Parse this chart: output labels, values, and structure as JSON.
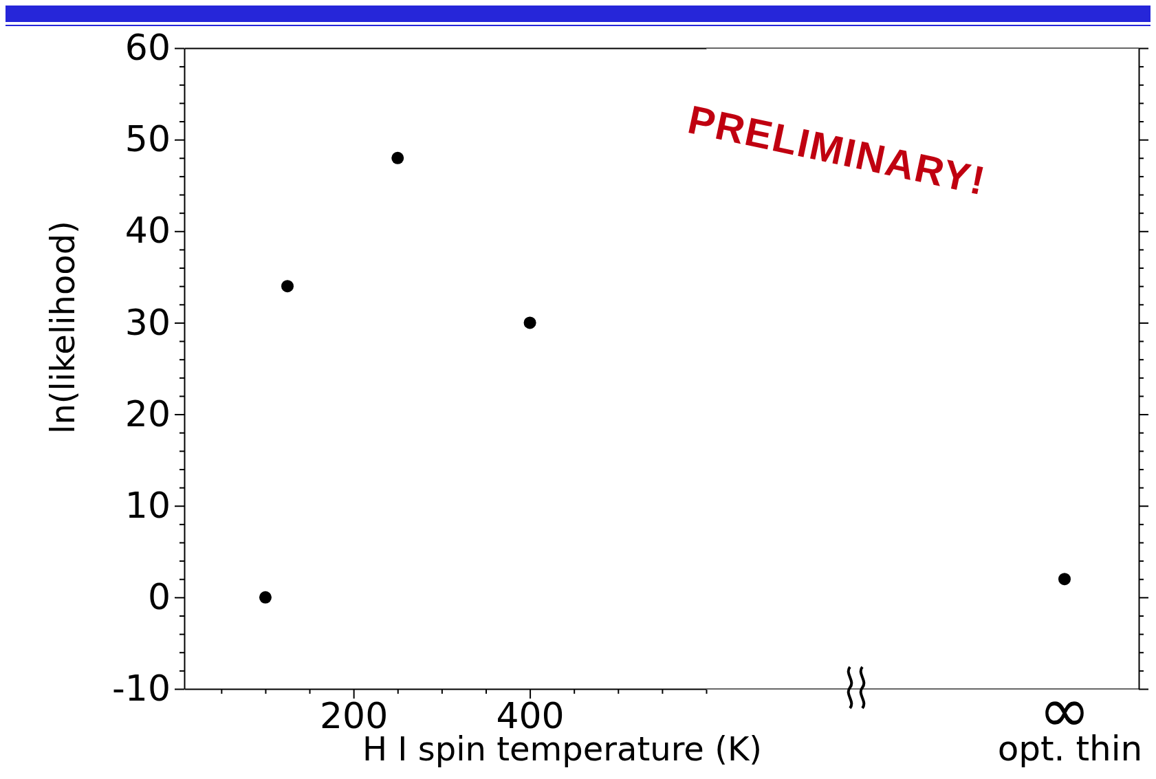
{
  "chart_data": [
    {
      "type": "scatter",
      "xlabel": "H I spin temperature (K)",
      "ylabel": "ln(likelihood)",
      "x": [
        100,
        125,
        250,
        400
      ],
      "values": [
        0,
        34,
        48,
        30
      ],
      "color": "#000000",
      "marker": "circle",
      "xlim": [
        8,
        600
      ],
      "xticks": [
        {
          "value": 50,
          "label": null
        },
        {
          "value": 100,
          "label": null
        },
        {
          "value": 150,
          "label": null
        },
        200,
        {
          "value": 250,
          "label": null
        },
        {
          "value": 300,
          "label": null
        },
        {
          "value": 350,
          "label": null
        },
        400,
        {
          "value": 450,
          "label": null
        },
        {
          "value": 500,
          "label": null
        },
        {
          "value": 550,
          "label": null
        },
        {
          "value": 600,
          "label": null
        }
      ],
      "ylim": [
        -10,
        60
      ],
      "yticks": [
        -10,
        {
          "value": -8,
          "label": null
        },
        {
          "value": -6,
          "label": null
        },
        {
          "value": -4,
          "label": null
        },
        {
          "value": -2,
          "label": null
        },
        0,
        {
          "value": 2,
          "label": null
        },
        {
          "value": 4,
          "label": null
        },
        {
          "value": 6,
          "label": null
        },
        {
          "value": 8,
          "label": null
        },
        10,
        {
          "value": 12,
          "label": null
        },
        {
          "value": 14,
          "label": null
        },
        {
          "value": 16,
          "label": null
        },
        {
          "value": 18,
          "label": null
        },
        20,
        {
          "value": 22,
          "label": null
        },
        {
          "value": 24,
          "label": null
        },
        {
          "value": 26,
          "label": null
        },
        {
          "value": 28,
          "label": null
        },
        30,
        {
          "value": 32,
          "label": null
        },
        {
          "value": 34,
          "label": null
        },
        {
          "value": 36,
          "label": null
        },
        {
          "value": 38,
          "label": null
        },
        40,
        {
          "value": 42,
          "label": null
        },
        {
          "value": 44,
          "label": null
        },
        {
          "value": 46,
          "label": null
        },
        {
          "value": 48,
          "label": null
        },
        50,
        {
          "value": 52,
          "label": null
        },
        {
          "value": 54,
          "label": null
        },
        {
          "value": 56,
          "label": null
        },
        {
          "value": 58,
          "label": null
        },
        60
      ],
      "annotations": [
        "PRELIMINARY!"
      ]
    },
    {
      "type": "scatter",
      "xlabel": "opt. thin",
      "categories": [
        "∞"
      ],
      "values": [
        2
      ],
      "color": "#000000",
      "marker": "circle",
      "ylim": [
        -10,
        60
      ],
      "yticks": [
        -10,
        {
          "value": -8,
          "label": null
        },
        {
          "value": -6,
          "label": null
        },
        {
          "value": -4,
          "label": null
        },
        {
          "value": -2,
          "label": null
        },
        0,
        {
          "value": 2,
          "label": null
        },
        {
          "value": 4,
          "label": null
        },
        {
          "value": 6,
          "label": null
        },
        {
          "value": 8,
          "label": null
        },
        10,
        {
          "value": 12,
          "label": null
        },
        {
          "value": 14,
          "label": null
        },
        {
          "value": 16,
          "label": null
        },
        {
          "value": 18,
          "label": null
        },
        20,
        {
          "value": 22,
          "label": null
        },
        {
          "value": 24,
          "label": null
        },
        {
          "value": 26,
          "label": null
        },
        {
          "value": 28,
          "label": null
        },
        30,
        {
          "value": 32,
          "label": null
        },
        {
          "value": 34,
          "label": null
        },
        {
          "value": 36,
          "label": null
        },
        {
          "value": 38,
          "label": null
        },
        40,
        {
          "value": 42,
          "label": null
        },
        {
          "value": 44,
          "label": null
        },
        {
          "value": 46,
          "label": null
        },
        {
          "value": 48,
          "label": null
        },
        50,
        {
          "value": 52,
          "label": null
        },
        {
          "value": 54,
          "label": null
        },
        {
          "value": 56,
          "label": null
        },
        {
          "value": 58,
          "label": null
        },
        60
      ],
      "tick_labels": "x"
    }
  ]
}
